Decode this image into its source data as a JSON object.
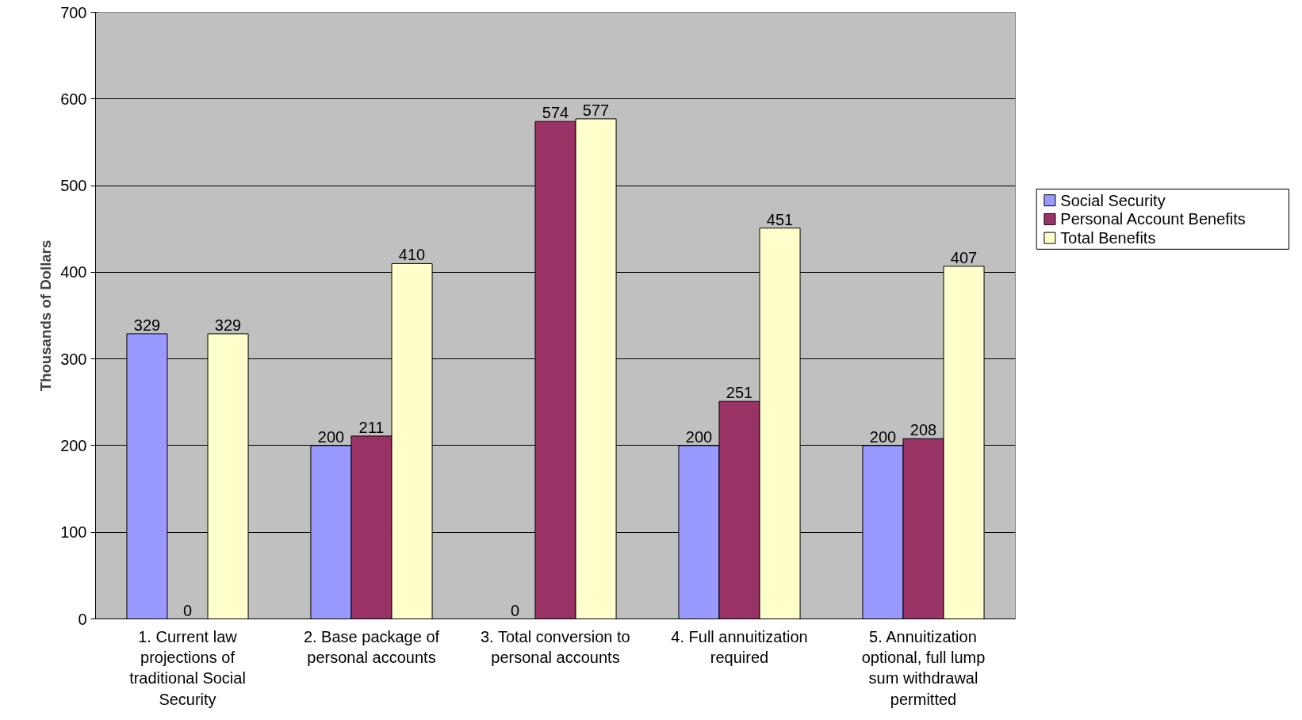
{
  "chart_data": {
    "type": "bar",
    "ylabel": "Thousands of Dollars",
    "categories": [
      "1. Current law projections of traditional Social Security",
      "2. Base package of personal accounts",
      "3. Total conversion to personal accounts",
      "4. Full annuitization required",
      "5. Annuitization optional, full lump sum withdrawal permitted"
    ],
    "series": [
      {
        "name": "Social Security",
        "color": "#9999ff",
        "values": [
          329,
          200,
          0,
          200,
          200
        ]
      },
      {
        "name": "Personal Account Benefits",
        "color": "#993366",
        "values": [
          0,
          211,
          574,
          251,
          208
        ]
      },
      {
        "name": "Total Benefits",
        "color": "#ffffcc",
        "values": [
          329,
          410,
          577,
          451,
          407
        ]
      }
    ],
    "ylim": [
      0,
      700
    ],
    "yticks": [
      0,
      100,
      200,
      300,
      400,
      500,
      600,
      700
    ],
    "grid": "y",
    "legend": "right",
    "data_labels": true
  }
}
